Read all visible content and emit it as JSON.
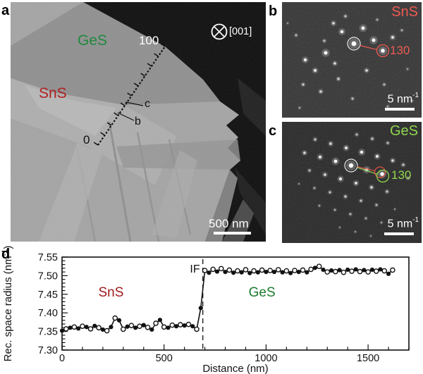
{
  "panels": {
    "a": {
      "label": "a",
      "kind": "STEM micrograph of SnS/GeS lateral heterostructure flake",
      "labels": {
        "ges": "GeS",
        "sns": "SnS",
        "ruler_end": "100",
        "ruler_start": "0",
        "pt_c": "c",
        "pt_b": "b",
        "zone_axis": "[001]",
        "scalebar": "500 nm"
      },
      "colors": {
        "ges_text": "#1f8a3e",
        "sns_text": "#b02020"
      }
    },
    "b": {
      "label": "b",
      "kind": "electron diffraction pattern",
      "material": "SnS",
      "reflection": "130",
      "scalebar_pre": "5 nm",
      "scalebar_sup": "-1",
      "accent": "#ee5a52",
      "spots": [
        [
          102,
          59,
          3.4,
          1
        ],
        [
          130,
          54,
          2.6,
          0.95
        ],
        [
          143,
          69,
          2.8,
          1
        ],
        [
          62,
          72,
          2.6,
          0.95
        ],
        [
          85,
          42,
          2.3,
          0.9
        ],
        [
          115,
          37,
          2.5,
          0.95
        ],
        [
          157,
          50,
          2.0,
          0.8
        ],
        [
          73,
          30,
          1.9,
          0.75
        ],
        [
          33,
          82,
          2.2,
          0.9
        ],
        [
          75,
          87,
          1.8,
          0.8
        ],
        [
          47,
          97,
          2.0,
          0.85
        ],
        [
          120,
          97,
          1.8,
          0.8
        ],
        [
          80,
          109,
          1.7,
          0.7
        ],
        [
          30,
          117,
          1.6,
          0.7
        ],
        [
          55,
          127,
          1.8,
          0.75
        ],
        [
          100,
          137,
          1.5,
          0.65
        ],
        [
          20,
          47,
          1.5,
          0.6
        ],
        [
          145,
          117,
          1.5,
          0.6
        ],
        [
          170,
          40,
          1.4,
          0.55
        ],
        [
          90,
          20,
          1.6,
          0.65
        ],
        [
          135,
          25,
          1.4,
          0.55
        ],
        [
          60,
          55,
          1.6,
          0.6
        ],
        [
          25,
          150,
          1.3,
          0.5
        ],
        [
          150,
          148,
          1.3,
          0.5
        ],
        [
          178,
          95,
          1.3,
          0.45
        ],
        [
          8,
          30,
          1.2,
          0.4
        ],
        [
          185,
          140,
          1.1,
          0.4
        ]
      ]
    },
    "c": {
      "label": "c",
      "kind": "electron diffraction pattern",
      "material": "GeS",
      "reflection": "130",
      "scalebar_pre": "5 nm",
      "scalebar_sup": "-1",
      "accent": "#8fd64e",
      "red_accent": "#e05248",
      "spots": [
        [
          98,
          62,
          3.2,
          1
        ],
        [
          120,
          68,
          2.4,
          0.9
        ],
        [
          142,
          74,
          2.8,
          1
        ],
        [
          76,
          56,
          2.5,
          0.95
        ],
        [
          54,
          50,
          2.1,
          0.85
        ],
        [
          32,
          44,
          1.9,
          0.75
        ],
        [
          113,
          43,
          2.3,
          0.9
        ],
        [
          135,
          49,
          2.1,
          0.85
        ],
        [
          157,
          55,
          1.9,
          0.75
        ],
        [
          91,
          37,
          2.1,
          0.85
        ],
        [
          69,
          31,
          1.9,
          0.75
        ],
        [
          47,
          25,
          1.7,
          0.65
        ],
        [
          128,
          24,
          1.7,
          0.65
        ],
        [
          150,
          30,
          1.6,
          0.6
        ],
        [
          106,
          18,
          1.6,
          0.6
        ],
        [
          172,
          61,
          1.7,
          0.65
        ],
        [
          179,
          80,
          1.5,
          0.6
        ],
        [
          83,
          81,
          2.2,
          0.85
        ],
        [
          105,
          87,
          2.0,
          0.8
        ],
        [
          127,
          93,
          1.9,
          0.75
        ],
        [
          149,
          99,
          1.7,
          0.65
        ],
        [
          61,
          75,
          1.9,
          0.75
        ],
        [
          39,
          69,
          1.6,
          0.6
        ],
        [
          90,
          106,
          1.7,
          0.7
        ],
        [
          112,
          112,
          1.6,
          0.65
        ],
        [
          134,
          118,
          1.5,
          0.6
        ],
        [
          68,
          100,
          1.6,
          0.65
        ],
        [
          46,
          94,
          1.4,
          0.55
        ],
        [
          97,
          131,
          1.5,
          0.6
        ],
        [
          119,
          137,
          1.4,
          0.55
        ],
        [
          75,
          125,
          1.4,
          0.55
        ],
        [
          141,
          143,
          1.3,
          0.5
        ],
        [
          53,
          119,
          1.3,
          0.5
        ],
        [
          104,
          156,
          1.2,
          0.45
        ],
        [
          126,
          162,
          1.2,
          0.4
        ],
        [
          160,
          124,
          1.2,
          0.4
        ],
        [
          24,
          88,
          1.2,
          0.4
        ],
        [
          82,
          150,
          1.2,
          0.4
        ]
      ]
    },
    "d": {
      "label": "d",
      "kind": "line profile of reciprocal space radius across interface"
    }
  },
  "chart_data": {
    "type": "line",
    "xlabel": "Distance (nm)",
    "ylabel_pre": "Rec. space radius (nm",
    "ylabel_sup": "-1",
    "ylabel_post": ")",
    "xlim": [
      0,
      1700
    ],
    "ylim": [
      7.3,
      7.55
    ],
    "xticks": [
      0,
      500,
      1000,
      1500
    ],
    "xminor_step": 100,
    "ymajor_step": 0.05,
    "yminor_step": 0.01,
    "interface_x": 690,
    "marker_style": "alternating filled and open circles with connecting line",
    "annotations": [
      {
        "text": "SnS",
        "x": 240,
        "y": 7.444,
        "color": "#a01d1d",
        "size": 19,
        "anchor": "middle"
      },
      {
        "text": "GeS",
        "x": 980,
        "y": 7.444,
        "color": "#1d7a2e",
        "size": 19,
        "anchor": "middle"
      },
      {
        "text": "IF",
        "x": 676,
        "y": 7.508,
        "color": "#111111",
        "size": 16,
        "anchor": "end"
      }
    ],
    "x": [
      0,
      20,
      40,
      60,
      80,
      100,
      120,
      140,
      160,
      180,
      200,
      220,
      240,
      260,
      280,
      300,
      320,
      340,
      360,
      380,
      400,
      420,
      440,
      460,
      480,
      500,
      520,
      540,
      560,
      580,
      600,
      620,
      640,
      660,
      680,
      700,
      720,
      740,
      760,
      780,
      800,
      820,
      840,
      860,
      880,
      900,
      920,
      940,
      960,
      980,
      1000,
      1020,
      1040,
      1060,
      1080,
      1100,
      1120,
      1140,
      1160,
      1180,
      1200,
      1220,
      1240,
      1260,
      1280,
      1300,
      1320,
      1340,
      1360,
      1380,
      1400,
      1420,
      1440,
      1460,
      1480,
      1500,
      1520,
      1540,
      1560,
      1580,
      1600,
      1620
    ],
    "y": [
      7.352,
      7.357,
      7.36,
      7.362,
      7.358,
      7.364,
      7.362,
      7.357,
      7.365,
      7.36,
      7.355,
      7.352,
      7.362,
      7.386,
      7.38,
      7.356,
      7.363,
      7.366,
      7.36,
      7.364,
      7.367,
      7.361,
      7.355,
      7.372,
      7.381,
      7.362,
      7.36,
      7.367,
      7.364,
      7.368,
      7.366,
      7.369,
      7.364,
      7.356,
      7.413,
      7.514,
      7.508,
      7.517,
      7.511,
      7.519,
      7.51,
      7.515,
      7.508,
      7.513,
      7.509,
      7.516,
      7.507,
      7.513,
      7.509,
      7.515,
      7.51,
      7.514,
      7.51,
      7.516,
      7.509,
      7.513,
      7.507,
      7.514,
      7.51,
      7.515,
      7.509,
      7.517,
      7.521,
      7.525,
      7.516,
      7.51,
      7.514,
      7.511,
      7.515,
      7.509,
      7.516,
      7.512,
      7.517,
      7.511,
      7.515,
      7.51,
      7.516,
      7.512,
      7.517,
      7.513,
      7.505,
      7.515
    ]
  }
}
